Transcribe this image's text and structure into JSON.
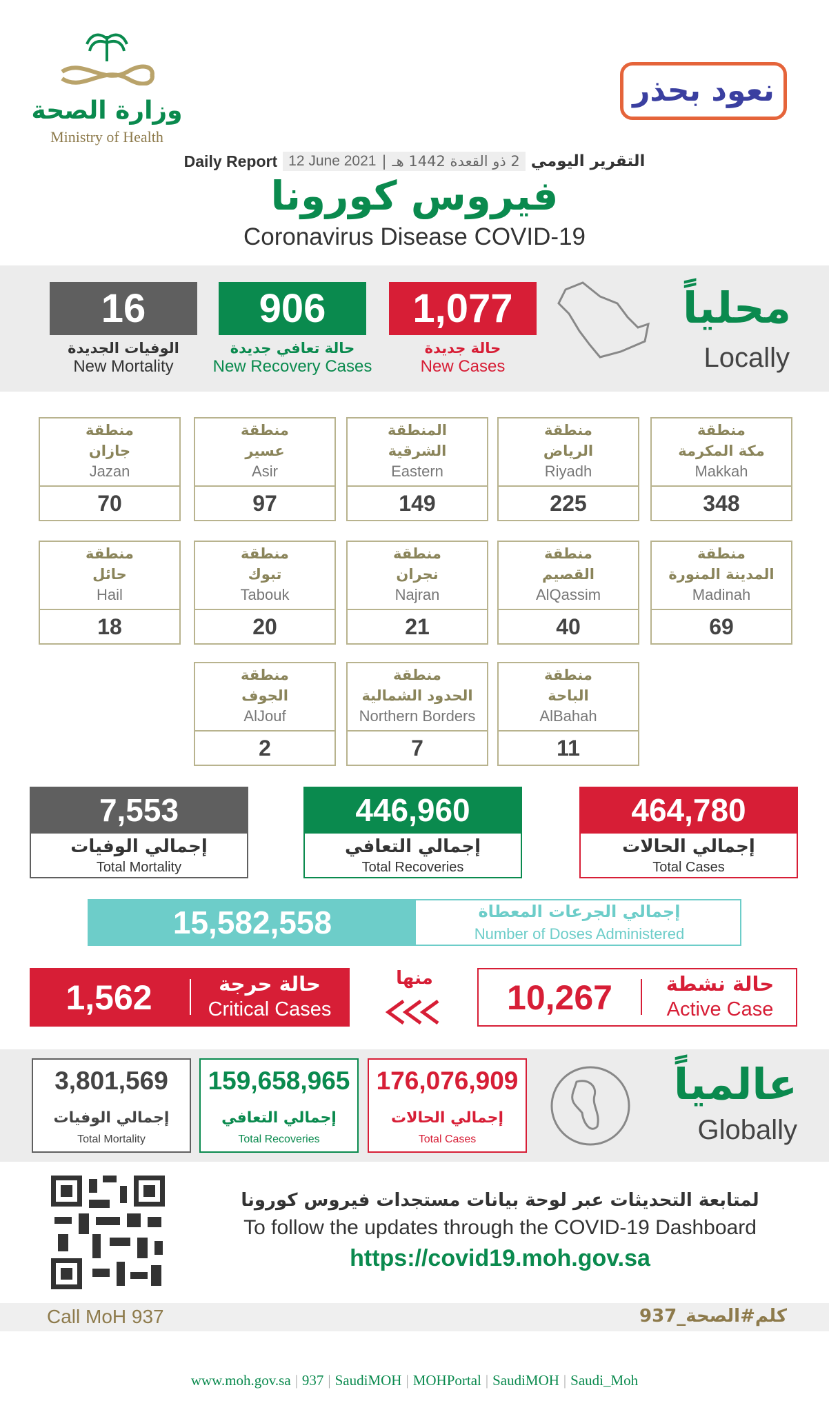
{
  "header": {
    "ministry_ar": "وزارة الصحة",
    "ministry_en": "Ministry of Health",
    "campaign": "نعود بحذر",
    "report_en": "Daily Report",
    "date_gregorian": "12 June 2021",
    "date_hijri": "2 ذو القعدة 1442 هـ",
    "report_ar": "التقرير اليومي",
    "title_ar": "فيروس كورونا",
    "title_en": "Coronavirus Disease COVID-19"
  },
  "locally": {
    "label_ar": "محلياً",
    "label_en": "Locally",
    "stats": [
      {
        "value": "1,077",
        "label_ar": "حالة جديدة",
        "label_en": "New Cases"
      },
      {
        "value": "906",
        "label_ar": "حالة تعافي جديدة",
        "label_en": "New Recovery Cases"
      },
      {
        "value": "16",
        "label_ar": "الوفيات الجديدة",
        "label_en": "New Mortality"
      }
    ]
  },
  "regions": [
    {
      "prefix": "منطقة",
      "name_ar": "مكة المكرمة",
      "name_en": "Makkah",
      "value": 348
    },
    {
      "prefix": "منطقة",
      "name_ar": "الرياض",
      "name_en": "Riyadh",
      "value": 225
    },
    {
      "prefix": "المنطقة",
      "name_ar": "الشرقية",
      "name_en": "Eastern",
      "value": 149
    },
    {
      "prefix": "منطقة",
      "name_ar": "عسير",
      "name_en": "Asir",
      "value": 97
    },
    {
      "prefix": "منطقة",
      "name_ar": "جازان",
      "name_en": "Jazan",
      "value": 70
    },
    {
      "prefix": "منطقة",
      "name_ar": "المدينة المنورة",
      "name_en": "Madinah",
      "value": 69
    },
    {
      "prefix": "منطقة",
      "name_ar": "القصيم",
      "name_en": "AlQassim",
      "value": 40
    },
    {
      "prefix": "منطقة",
      "name_ar": "نجران",
      "name_en": "Najran",
      "value": 21
    },
    {
      "prefix": "منطقة",
      "name_ar": "تبوك",
      "name_en": "Tabouk",
      "value": 20
    },
    {
      "prefix": "منطقة",
      "name_ar": "حائل",
      "name_en": "Hail",
      "value": 18
    },
    {
      "prefix": "منطقة",
      "name_ar": "الباحة",
      "name_en": "AlBahah",
      "value": 11
    },
    {
      "prefix": "منطقة",
      "name_ar": "الحدود الشمالية",
      "name_en": "Northern Borders",
      "value": 7
    },
    {
      "prefix": "منطقة",
      "name_ar": "الجوف",
      "name_en": "AlJouf",
      "value": 2
    }
  ],
  "totals": [
    {
      "value": "464,780",
      "label_ar": "إجمالي الحالات",
      "label_en": "Total Cases"
    },
    {
      "value": "446,960",
      "label_ar": "إجمالي التعافي",
      "label_en": "Total Recoveries"
    },
    {
      "value": "7,553",
      "label_ar": "إجمالي الوفيات",
      "label_en": "Total Mortality"
    }
  ],
  "doses": {
    "value": "15,582,558",
    "label_ar": "إجمالي الجرعات المعطاة",
    "label_en": "Number of Doses Administered"
  },
  "active": {
    "label_ar": "حالة نشطة",
    "label_en": "Active Case",
    "value": "10,267"
  },
  "of_which": "منها",
  "critical": {
    "label_ar": "حالة حرجة",
    "label_en": "Critical Cases",
    "value": "1,562"
  },
  "globally": {
    "label_ar": "عالمياً",
    "label_en": "Globally",
    "stats": [
      {
        "value": "176,076,909",
        "label_ar": "إجمالي الحالات",
        "label_en": "Total Cases"
      },
      {
        "value": "159,658,965",
        "label_ar": "إجمالي التعافي",
        "label_en": "Total Recoveries"
      },
      {
        "value": "3,801,569",
        "label_ar": "إجمالي الوفيات",
        "label_en": "Total Mortality"
      }
    ]
  },
  "footer": {
    "follow_ar": "لمتابعة التحديثات عبر لوحة بيانات مستجدات فيروس كورونا",
    "follow_en": "To follow the updates through the COVID-19 Dashboard",
    "url": "https://covid19.moh.gov.sa",
    "call": "Call MoH 937",
    "hashtag": "كلم#الصحة_937",
    "links": [
      "www.moh.gov.sa",
      "937",
      "SaudiMOH",
      "MOHPortal",
      "SaudiMOH",
      "Saudi_Moh"
    ]
  }
}
